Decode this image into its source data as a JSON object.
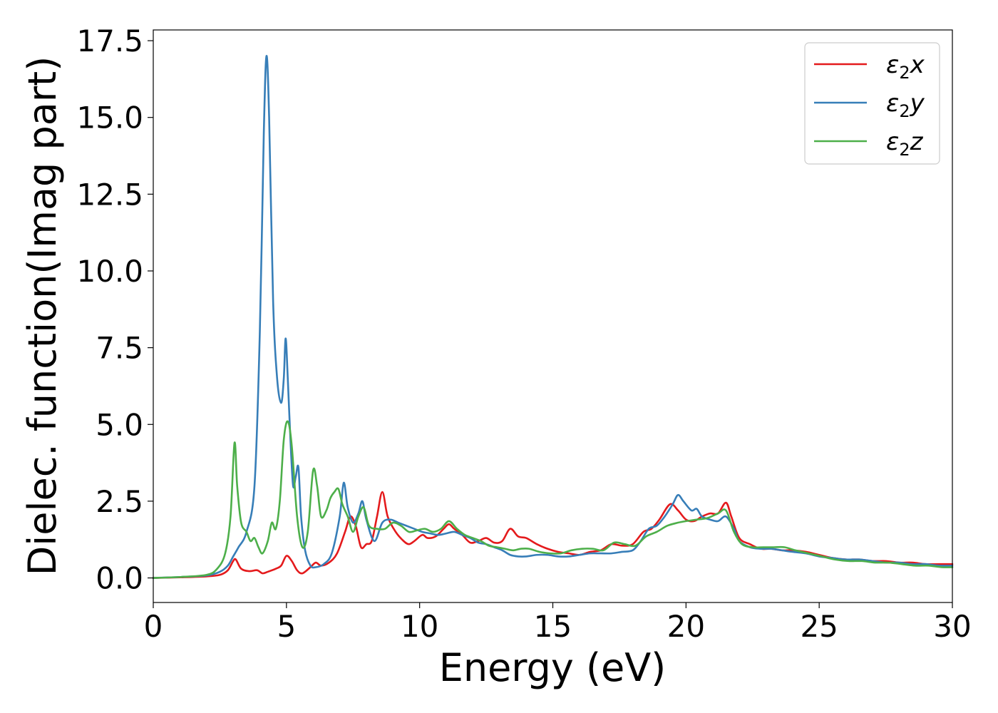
{
  "chart_data": {
    "type": "line",
    "title": "",
    "xlabel": "Energy (eV)",
    "ylabel": "Dielec. function(Imag part)",
    "xlim": [
      0,
      30
    ],
    "ylim": [
      -0.8,
      17.85
    ],
    "xticks": [
      0,
      5,
      10,
      15,
      20,
      25,
      30
    ],
    "xtick_labels": [
      "0",
      "5",
      "10",
      "15",
      "20",
      "25",
      "30"
    ],
    "yticks": [
      0.0,
      2.5,
      5.0,
      7.5,
      10.0,
      12.5,
      15.0,
      17.5
    ],
    "ytick_labels": [
      "0.0",
      "2.5",
      "5.0",
      "7.5",
      "10.0",
      "12.5",
      "15.0",
      "17.5"
    ],
    "grid": false,
    "legend_position": "top-right",
    "series": [
      {
        "name": "ε₂x",
        "label_main": "ε",
        "label_sub": "2",
        "label_tail": "x",
        "color": "#e41a1c",
        "x": [
          0,
          1,
          2,
          2.5,
          2.8,
          3.0,
          3.1,
          3.3,
          3.6,
          3.9,
          4.1,
          4.3,
          4.6,
          4.8,
          5.0,
          5.2,
          5.4,
          5.6,
          5.9,
          6.1,
          6.3,
          6.6,
          6.9,
          7.2,
          7.4,
          7.6,
          7.8,
          8.0,
          8.2,
          8.4,
          8.6,
          8.8,
          9.1,
          9.4,
          9.6,
          9.8,
          10.1,
          10.3,
          10.6,
          10.9,
          11.1,
          11.3,
          11.6,
          11.9,
          12.2,
          12.5,
          12.8,
          13.1,
          13.4,
          13.7,
          14.0,
          14.4,
          14.8,
          15.2,
          15.6,
          16.0,
          16.4,
          16.8,
          17.2,
          17.6,
          18.0,
          18.4,
          18.7,
          19.0,
          19.4,
          19.7,
          20.0,
          20.3,
          20.6,
          20.9,
          21.2,
          21.5,
          21.7,
          22.0,
          22.4,
          22.8,
          23.2,
          23.6,
          24.0,
          24.5,
          25.0,
          25.5,
          26.0,
          26.5,
          27.0,
          27.5,
          28.0,
          28.5,
          29.0,
          29.5,
          30.0
        ],
        "y": [
          0.0,
          0.02,
          0.05,
          0.1,
          0.25,
          0.55,
          0.6,
          0.3,
          0.22,
          0.25,
          0.15,
          0.2,
          0.3,
          0.4,
          0.72,
          0.55,
          0.25,
          0.15,
          0.35,
          0.5,
          0.4,
          0.5,
          0.8,
          1.5,
          2.0,
          1.7,
          1.0,
          1.1,
          1.2,
          2.0,
          2.8,
          2.0,
          1.5,
          1.2,
          1.1,
          1.2,
          1.4,
          1.3,
          1.35,
          1.6,
          1.75,
          1.6,
          1.4,
          1.15,
          1.2,
          1.3,
          1.15,
          1.2,
          1.6,
          1.35,
          1.3,
          1.1,
          0.95,
          0.85,
          0.8,
          0.75,
          0.85,
          0.9,
          1.1,
          1.05,
          1.1,
          1.5,
          1.6,
          1.9,
          2.4,
          2.2,
          1.9,
          1.85,
          2.0,
          2.1,
          2.1,
          2.45,
          2.0,
          1.3,
          1.1,
          0.95,
          0.95,
          0.9,
          0.9,
          0.85,
          0.75,
          0.65,
          0.6,
          0.6,
          0.55,
          0.55,
          0.5,
          0.5,
          0.45,
          0.45,
          0.45
        ]
      },
      {
        "name": "ε₂y",
        "label_main": "ε",
        "label_sub": "2",
        "label_tail": "y",
        "color": "#377eb8",
        "x": [
          0,
          1,
          2,
          2.5,
          2.8,
          3.0,
          3.2,
          3.5,
          3.8,
          4.0,
          4.15,
          4.25,
          4.35,
          4.5,
          4.65,
          4.8,
          4.9,
          4.97,
          5.05,
          5.15,
          5.25,
          5.35,
          5.45,
          5.55,
          5.7,
          5.9,
          6.1,
          6.4,
          6.7,
          7.0,
          7.15,
          7.3,
          7.5,
          7.7,
          7.85,
          8.0,
          8.3,
          8.6,
          8.9,
          9.2,
          9.5,
          9.8,
          10.1,
          10.4,
          10.7,
          11.0,
          11.3,
          11.6,
          11.9,
          12.2,
          12.5,
          12.8,
          13.1,
          13.4,
          13.7,
          14.0,
          14.4,
          14.8,
          15.2,
          15.6,
          16.0,
          16.4,
          16.8,
          17.2,
          17.6,
          18.0,
          18.3,
          18.6,
          18.9,
          19.2,
          19.5,
          19.7,
          19.9,
          20.2,
          20.4,
          20.6,
          20.9,
          21.2,
          21.5,
          21.8,
          22.0,
          22.4,
          22.8,
          23.2,
          23.6,
          24.0,
          24.5,
          25.0,
          25.5,
          26.0,
          26.5,
          27.0,
          27.5,
          28.0,
          28.5,
          29.0,
          29.5,
          30.0
        ],
        "y": [
          0.0,
          0.03,
          0.08,
          0.2,
          0.4,
          0.7,
          1.0,
          1.5,
          3.0,
          8.0,
          14.5,
          17.0,
          15.0,
          9.0,
          6.5,
          5.7,
          6.5,
          7.8,
          6.5,
          4.5,
          3.0,
          3.3,
          3.6,
          2.0,
          0.9,
          0.4,
          0.35,
          0.45,
          0.8,
          2.0,
          3.1,
          2.3,
          1.8,
          2.1,
          2.5,
          1.9,
          1.2,
          1.8,
          1.9,
          1.8,
          1.7,
          1.6,
          1.5,
          1.45,
          1.4,
          1.45,
          1.5,
          1.4,
          1.3,
          1.15,
          1.1,
          1.0,
          0.9,
          0.75,
          0.7,
          0.7,
          0.75,
          0.75,
          0.7,
          0.7,
          0.75,
          0.8,
          0.8,
          0.8,
          0.85,
          0.9,
          1.2,
          1.6,
          1.7,
          2.0,
          2.4,
          2.7,
          2.5,
          2.2,
          2.25,
          2.0,
          1.9,
          1.85,
          2.0,
          1.6,
          1.2,
          1.0,
          0.95,
          0.95,
          0.9,
          0.85,
          0.8,
          0.7,
          0.65,
          0.6,
          0.6,
          0.55,
          0.5,
          0.5,
          0.45,
          0.45,
          0.4,
          0.4
        ]
      },
      {
        "name": "ε₂z",
        "label_main": "ε",
        "label_sub": "2",
        "label_tail": "z",
        "color": "#4daf4a",
        "x": [
          0,
          1,
          2,
          2.4,
          2.7,
          2.9,
          3.05,
          3.15,
          3.3,
          3.5,
          3.65,
          3.8,
          3.95,
          4.1,
          4.3,
          4.45,
          4.6,
          4.75,
          4.9,
          5.05,
          5.2,
          5.4,
          5.6,
          5.8,
          6.0,
          6.15,
          6.3,
          6.5,
          6.65,
          6.8,
          6.95,
          7.1,
          7.3,
          7.5,
          7.7,
          7.9,
          8.1,
          8.4,
          8.7,
          9.0,
          9.3,
          9.6,
          9.9,
          10.2,
          10.5,
          10.8,
          11.1,
          11.4,
          11.7,
          12.0,
          12.3,
          12.6,
          12.9,
          13.2,
          13.5,
          13.8,
          14.1,
          14.5,
          14.9,
          15.3,
          15.7,
          16.1,
          16.5,
          16.9,
          17.3,
          17.7,
          18.1,
          18.5,
          18.9,
          19.3,
          19.7,
          20.0,
          20.4,
          20.8,
          21.2,
          21.5,
          21.8,
          22.1,
          22.5,
          22.9,
          23.3,
          23.7,
          24.1,
          24.6,
          25.1,
          25.6,
          26.1,
          26.6,
          27.1,
          27.6,
          28.1,
          28.6,
          29.1,
          29.6,
          30.0
        ],
        "y": [
          0.0,
          0.03,
          0.1,
          0.3,
          0.8,
          2.0,
          4.4,
          3.0,
          1.8,
          1.5,
          1.2,
          1.3,
          1.0,
          0.8,
          1.2,
          1.8,
          1.6,
          2.5,
          4.5,
          5.1,
          4.3,
          2.0,
          1.0,
          1.5,
          3.5,
          3.0,
          2.0,
          2.2,
          2.6,
          2.8,
          2.9,
          2.4,
          2.0,
          1.5,
          2.0,
          2.3,
          1.7,
          1.6,
          1.6,
          1.8,
          1.7,
          1.5,
          1.55,
          1.6,
          1.5,
          1.6,
          1.85,
          1.6,
          1.4,
          1.3,
          1.2,
          1.05,
          1.0,
          0.95,
          0.9,
          0.95,
          0.95,
          0.85,
          0.8,
          0.8,
          0.9,
          0.95,
          0.95,
          0.9,
          1.15,
          1.1,
          1.05,
          1.35,
          1.5,
          1.7,
          1.8,
          1.85,
          1.9,
          1.95,
          2.1,
          2.2,
          1.5,
          1.1,
          1.0,
          1.0,
          1.0,
          1.0,
          0.9,
          0.8,
          0.7,
          0.6,
          0.55,
          0.55,
          0.5,
          0.5,
          0.45,
          0.4,
          0.4,
          0.35,
          0.35
        ]
      }
    ]
  }
}
